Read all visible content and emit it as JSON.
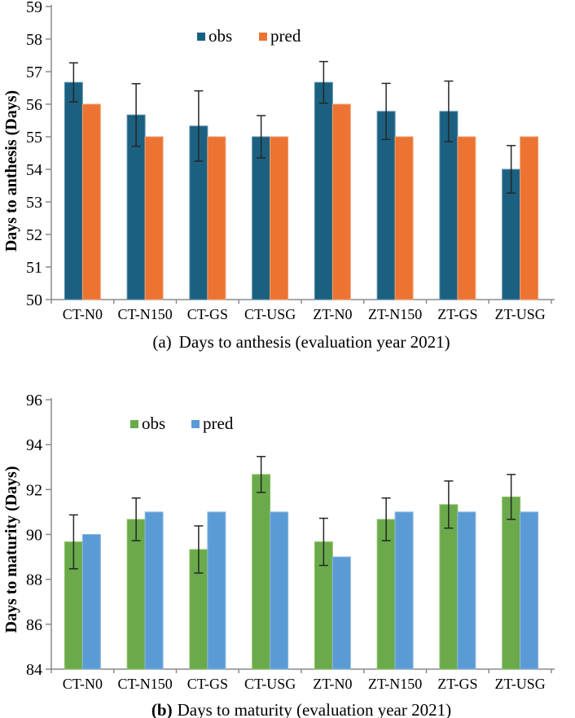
{
  "figure": {
    "background": "#ffffff",
    "axis_color": "#8a8a8a",
    "error_bar_color": "#262626",
    "text_color": "#000000"
  },
  "chart_data": [
    {
      "id": "days-to-anthesis",
      "type": "bar",
      "caption_prefix": "(a)",
      "caption_text": "Days to anthesis (evaluation year 2021)",
      "ylabel": "Days to anthesis (Days)",
      "ylim": [
        50,
        59
      ],
      "ytick_step": 1,
      "grid": false,
      "legend_position": "top-center",
      "legend_labels": [
        "obs",
        "pred"
      ],
      "categories": [
        "CT-N0",
        "CT-N150",
        "CT-GS",
        "CT-USG",
        "ZT-N0",
        "ZT-N150",
        "ZT-GS",
        "ZT-USG"
      ],
      "series": [
        {
          "name": "obs",
          "color": "#1b6080",
          "edge": "#5e93ad",
          "values": [
            56.67,
            55.67,
            55.33,
            55.0,
            56.67,
            55.78,
            55.78,
            54.0
          ],
          "errors": [
            0.6,
            0.96,
            1.08,
            0.65,
            0.64,
            0.86,
            0.93,
            0.73
          ]
        },
        {
          "name": "pred",
          "color": "#ec7332",
          "edge": "#f2a277",
          "values": [
            56,
            55,
            55,
            55,
            56,
            55,
            55,
            55
          ]
        }
      ]
    },
    {
      "id": "days-to-maturity",
      "type": "bar",
      "caption_prefix": "(b)",
      "caption_text": "Days to maturity (evaluation year 2021)",
      "ylabel": "Days to maturity (Days)",
      "ylim": [
        84,
        96
      ],
      "ytick_step": 2,
      "grid": false,
      "legend_position": "top-left",
      "legend_labels": [
        "obs",
        "pred"
      ],
      "categories": [
        "CT-N0",
        "CT-N150",
        "CT-GS",
        "CT-USG",
        "ZT-N0",
        "ZT-N150",
        "ZT-GS",
        "ZT-USG"
      ],
      "series": [
        {
          "name": "obs",
          "color": "#6aaa4b",
          "edge": "#93c36b",
          "values": [
            89.67,
            90.67,
            89.33,
            92.67,
            89.67,
            90.67,
            91.33,
            91.67
          ],
          "errors": [
            1.2,
            0.95,
            1.05,
            0.8,
            1.05,
            0.95,
            1.05,
            1.0
          ]
        },
        {
          "name": "pred",
          "color": "#5b9bd5",
          "edge": "#8cb8e2",
          "values": [
            90,
            91,
            91,
            91,
            89,
            91,
            91,
            91
          ]
        }
      ]
    }
  ]
}
